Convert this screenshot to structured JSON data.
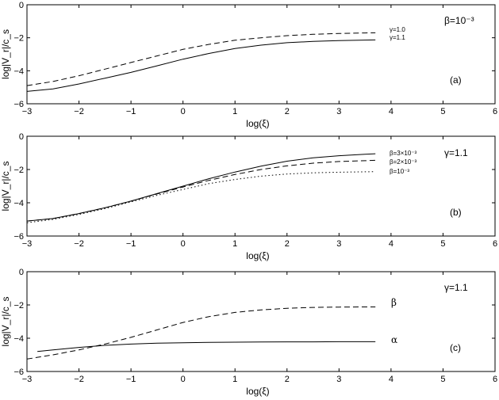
{
  "chart_data": [
    {
      "panel": "(a)",
      "type": "line",
      "xlabel": "log(ξ)",
      "ylabel": "log|V_r|/c_s",
      "xlim": [
        -3,
        6
      ],
      "ylim": [
        -6,
        0
      ],
      "xticks": [
        "−3",
        "−2",
        "−1",
        "0",
        "1",
        "2",
        "3",
        "4",
        "5",
        "6"
      ],
      "yticks": [
        "0",
        "−2",
        "−4",
        "−6"
      ],
      "annotation": "β=10⁻³",
      "series": [
        {
          "name": "γ=1.0",
          "style": "dashed",
          "x": [
            -3,
            -2.5,
            -2,
            -1.5,
            -1,
            -0.5,
            0,
            0.5,
            1,
            1.5,
            2,
            2.5,
            3,
            3.5,
            3.7
          ],
          "y": [
            -4.9,
            -4.65,
            -4.3,
            -3.9,
            -3.5,
            -3.1,
            -2.7,
            -2.4,
            -2.15,
            -2.0,
            -1.87,
            -1.79,
            -1.74,
            -1.71,
            -1.7
          ]
        },
        {
          "name": "γ=1.1",
          "style": "solid",
          "x": [
            -3,
            -2.5,
            -2,
            -1.5,
            -1,
            -0.5,
            0,
            0.5,
            1,
            1.5,
            2,
            2.5,
            3,
            3.5,
            3.7
          ],
          "y": [
            -5.25,
            -5.1,
            -4.8,
            -4.45,
            -4.1,
            -3.7,
            -3.3,
            -2.95,
            -2.65,
            -2.45,
            -2.3,
            -2.22,
            -2.17,
            -2.14,
            -2.13
          ]
        }
      ]
    },
    {
      "panel": "(b)",
      "type": "line",
      "xlabel": "log(ξ)",
      "ylabel": "log|V_r|/c_s",
      "xlim": [
        -3,
        6
      ],
      "ylim": [
        -6,
        0
      ],
      "xticks": [
        "−3",
        "−2",
        "−1",
        "0",
        "1",
        "2",
        "3",
        "4",
        "5",
        "6"
      ],
      "yticks": [
        "0",
        "−2",
        "−4",
        "−6"
      ],
      "annotation": "γ=1.1",
      "series": [
        {
          "name": "β=3×10⁻³",
          "style": "solid",
          "x": [
            -3,
            -2.5,
            -2,
            -1.5,
            -1,
            -0.5,
            0,
            0.5,
            1,
            1.5,
            2,
            2.5,
            3,
            3.5,
            3.7
          ],
          "y": [
            -5.1,
            -4.95,
            -4.65,
            -4.3,
            -3.9,
            -3.45,
            -3.0,
            -2.55,
            -2.15,
            -1.8,
            -1.5,
            -1.3,
            -1.17,
            -1.08,
            -1.05
          ]
        },
        {
          "name": "β=2×10⁻³",
          "style": "dashed",
          "x": [
            -3,
            -2.5,
            -2,
            -1.5,
            -1,
            -0.5,
            0,
            0.5,
            1,
            1.5,
            2,
            2.5,
            3,
            3.5,
            3.7
          ],
          "y": [
            -5.1,
            -4.95,
            -4.65,
            -4.3,
            -3.9,
            -3.47,
            -3.05,
            -2.65,
            -2.3,
            -2.0,
            -1.78,
            -1.62,
            -1.52,
            -1.47,
            -1.45
          ]
        },
        {
          "name": "β=10⁻³",
          "style": "dotted",
          "x": [
            -3,
            -2.5,
            -2,
            -1.5,
            -1,
            -0.5,
            0,
            0.5,
            1,
            1.5,
            2,
            2.5,
            3,
            3.5,
            3.7
          ],
          "y": [
            -5.2,
            -5.0,
            -4.7,
            -4.35,
            -3.95,
            -3.55,
            -3.2,
            -2.85,
            -2.6,
            -2.4,
            -2.27,
            -2.2,
            -2.16,
            -2.14,
            -2.13
          ]
        }
      ]
    },
    {
      "panel": "(c)",
      "type": "line",
      "xlabel": "log(ξ)",
      "ylabel": "log|V_r|/c_s",
      "xlim": [
        -3,
        6
      ],
      "ylim": [
        -6,
        0
      ],
      "xticks": [
        "−3",
        "−2",
        "−1",
        "0",
        "1",
        "2",
        "3",
        "4",
        "5",
        "6"
      ],
      "yticks": [
        "0",
        "−2",
        "−4",
        "−6"
      ],
      "annotation": "γ=1.1",
      "series": [
        {
          "name": "β",
          "style": "dashed",
          "x": [
            -3,
            -2.5,
            -2,
            -1.5,
            -1,
            -0.5,
            0,
            0.5,
            1,
            1.5,
            2,
            2.5,
            3,
            3.5,
            3.7
          ],
          "y": [
            -5.25,
            -5.0,
            -4.7,
            -4.35,
            -3.95,
            -3.5,
            -3.05,
            -2.7,
            -2.45,
            -2.3,
            -2.2,
            -2.15,
            -2.13,
            -2.12,
            -2.12
          ]
        },
        {
          "name": "α",
          "style": "solid",
          "x": [
            -2.8,
            -2.5,
            -2,
            -1.5,
            -1,
            -0.5,
            0,
            0.5,
            1,
            1.5,
            2,
            2.5,
            3,
            3.5,
            3.7
          ],
          "y": [
            -4.8,
            -4.7,
            -4.55,
            -4.43,
            -4.35,
            -4.3,
            -4.27,
            -4.25,
            -4.24,
            -4.23,
            -4.22,
            -4.22,
            -4.21,
            -4.21,
            -4.21
          ]
        }
      ]
    }
  ]
}
